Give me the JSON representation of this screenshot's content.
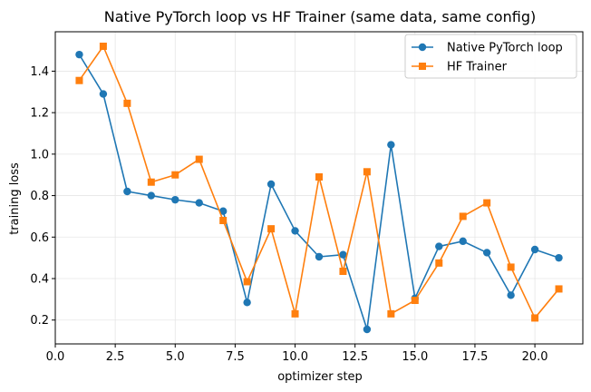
{
  "chart_data": {
    "type": "line",
    "title": "Native PyTorch loop vs HF Trainer  (same data, same config)",
    "xlabel": "optimizer step",
    "ylabel": "training loss",
    "xlim": [
      0,
      22
    ],
    "ylim": [
      0.085,
      1.59
    ],
    "xticks": [
      0.0,
      2.5,
      5.0,
      7.5,
      10.0,
      12.5,
      15.0,
      17.5,
      20.0
    ],
    "xtick_labels": [
      "0.0",
      "2.5",
      "5.0",
      "7.5",
      "10.0",
      "12.5",
      "15.0",
      "17.5",
      "20.0"
    ],
    "yticks": [
      0.2,
      0.4,
      0.6,
      0.8,
      1.0,
      1.2,
      1.4
    ],
    "ytick_labels": [
      "0.2",
      "0.4",
      "0.6",
      "0.8",
      "1.0",
      "1.2",
      "1.4"
    ],
    "grid": true,
    "legend_position": "top-right",
    "x": [
      1,
      2,
      3,
      4,
      5,
      6,
      7,
      8,
      9,
      10,
      11,
      12,
      13,
      14,
      15,
      16,
      17,
      18,
      19,
      20,
      21
    ],
    "series": [
      {
        "name": "Native PyTorch loop",
        "color": "#1f77b4",
        "marker": "circle",
        "values": [
          1.48,
          1.29,
          0.82,
          0.8,
          0.78,
          0.765,
          0.725,
          0.285,
          0.855,
          0.63,
          0.505,
          0.515,
          0.155,
          1.045,
          0.305,
          0.555,
          0.58,
          0.525,
          0.32,
          0.54,
          0.5
        ]
      },
      {
        "name": "HF Trainer",
        "color": "#ff7f0e",
        "marker": "square",
        "values": [
          1.355,
          1.52,
          1.245,
          0.865,
          0.9,
          0.975,
          0.68,
          0.385,
          0.64,
          0.23,
          0.89,
          0.435,
          0.915,
          0.23,
          0.295,
          0.475,
          0.7,
          0.765,
          0.455,
          0.21,
          0.35
        ]
      }
    ]
  }
}
